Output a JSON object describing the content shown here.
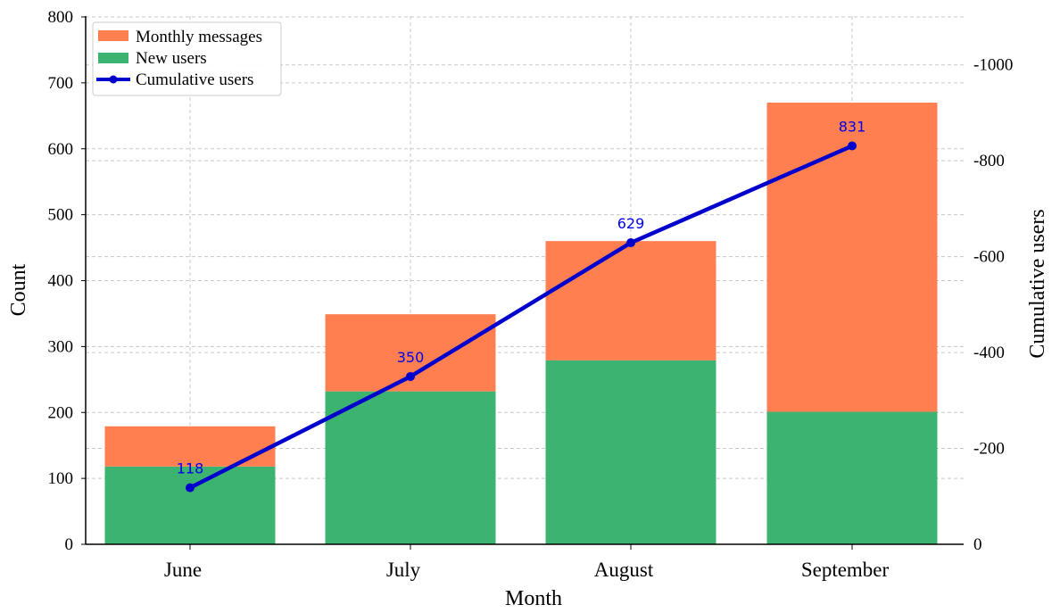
{
  "chart_data": {
    "type": "bar",
    "categories": [
      "June",
      "July",
      "August",
      "September"
    ],
    "xlabel": "Month",
    "ylabel": "Count",
    "y2label": "Cumulative users",
    "ylim": [
      0,
      800
    ],
    "yticks": [
      0,
      100,
      200,
      300,
      400,
      500,
      600,
      700,
      800
    ],
    "y2lim": [
      0,
      -1100
    ],
    "y2ticks": [
      0,
      -200,
      -400,
      -600,
      -800,
      -1000
    ],
    "grid": true,
    "legend_position": "top-left",
    "series": [
      {
        "name": "New users",
        "type": "bar",
        "stack": "total",
        "color": "#3cb371",
        "values": [
          118,
          232,
          279,
          201
        ]
      },
      {
        "name": "Monthly messages",
        "type": "bar",
        "stack": "total",
        "color": "#ff7f50",
        "values": [
          61,
          117,
          181,
          469
        ]
      },
      {
        "name": "Cumulative users",
        "type": "line",
        "axis": "right",
        "color": "#0000cd",
        "values": [
          118,
          350,
          629,
          831
        ],
        "data_labels": [
          "118",
          "350",
          "629",
          "831"
        ]
      }
    ],
    "legend": [
      "Monthly messages",
      "New users",
      "Cumulative users"
    ]
  }
}
